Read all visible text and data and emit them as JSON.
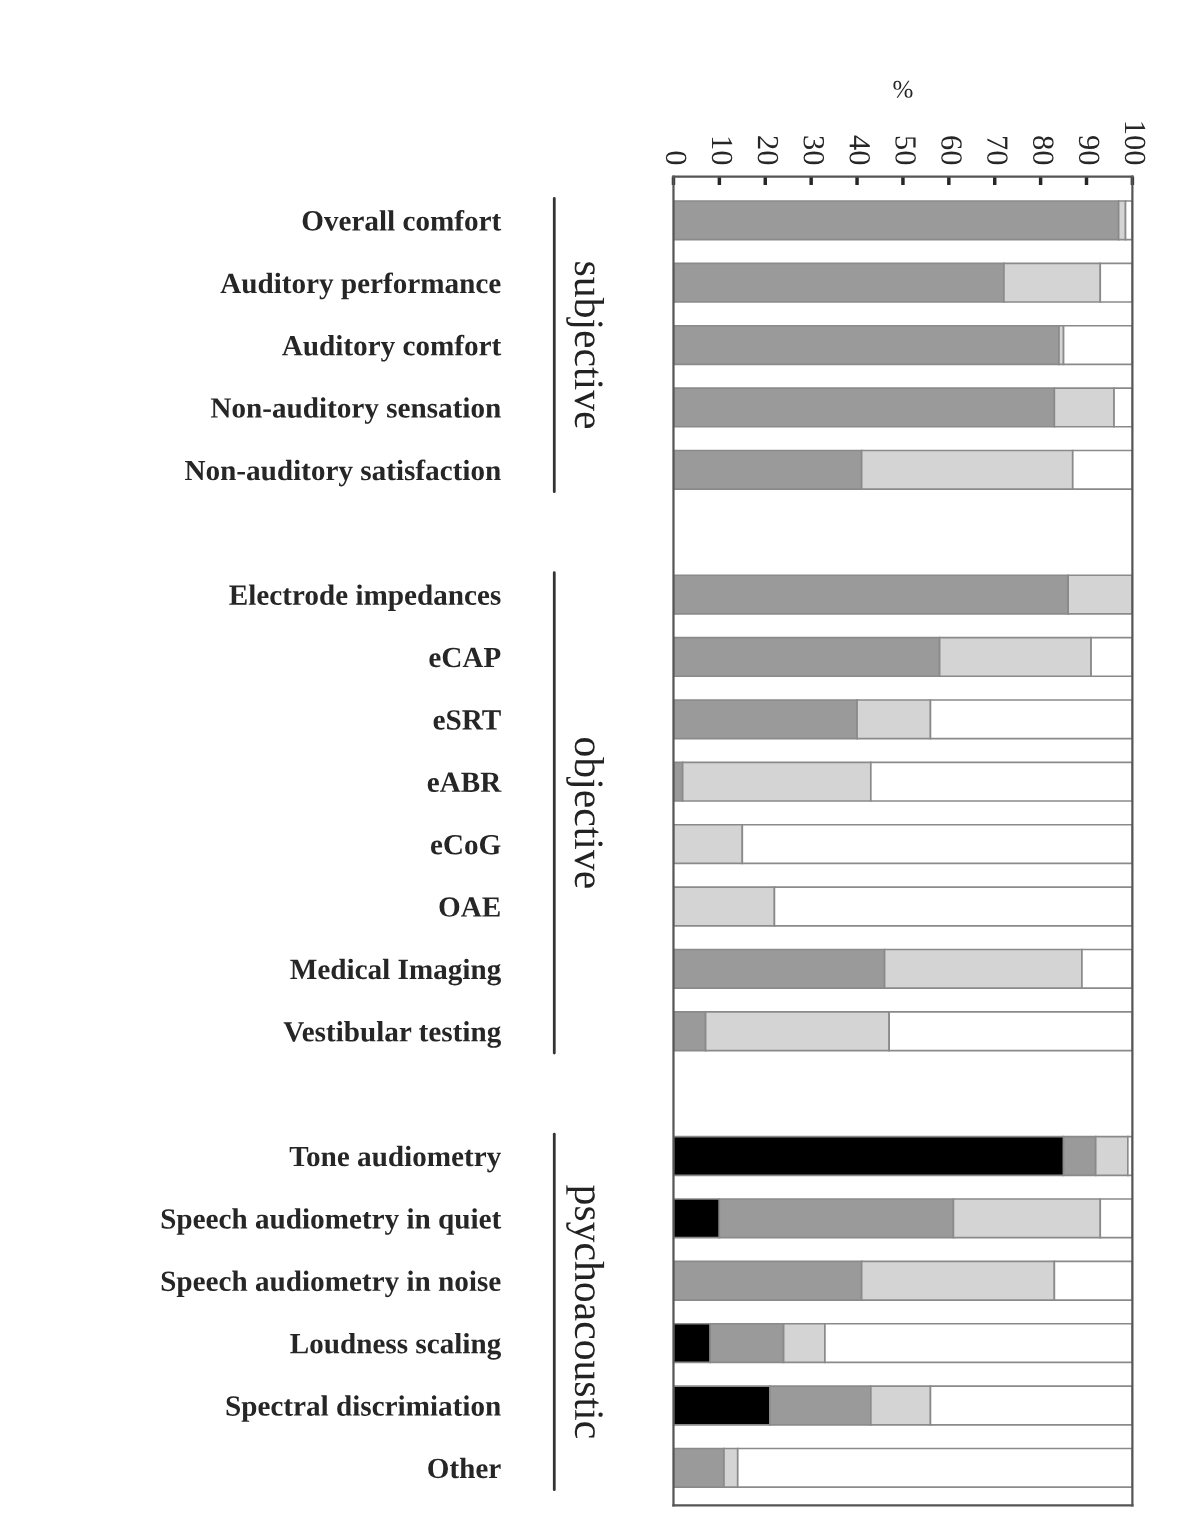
{
  "chart_data": {
    "type": "bar",
    "orientation": "horizontal",
    "stacked": true,
    "xlabel": "%",
    "categories": [
      "Overall comfort",
      "Auditory performance",
      "Auditory comfort",
      "Non-auditory sensation",
      "Non-auditory satisfaction",
      null,
      "Electrode impedances",
      "eCAP",
      "eSRT",
      "eABR",
      "eCoG",
      "OAE",
      "Medical Imaging",
      "Vestibular testing",
      null,
      "Tone audiometry",
      "Speech audiometry in quiet",
      "Speech audiometry in noise",
      "Loudness scaling",
      "Spectral discrimiation",
      "Other"
    ],
    "series": [
      {
        "color": "#000000",
        "values": [
          0,
          0,
          0,
          0,
          0,
          null,
          0,
          0,
          0,
          0,
          0,
          0,
          0,
          0,
          null,
          85,
          10,
          0,
          8,
          21,
          0
        ]
      },
      {
        "color": "#9a9a9a",
        "values": [
          97,
          72,
          84,
          83,
          41,
          null,
          86,
          58,
          40,
          2,
          0,
          0,
          46,
          7,
          null,
          7,
          51,
          41,
          16,
          22,
          11
        ]
      },
      {
        "color": "#d4d4d4",
        "values": [
          1.5,
          21,
          1,
          13,
          46,
          null,
          14,
          33,
          16,
          41,
          15,
          22,
          43,
          40,
          null,
          7,
          32,
          42,
          9,
          13,
          3
        ]
      },
      {
        "color": "#ffffff",
        "values": [
          1.5,
          7,
          15,
          4,
          13,
          null,
          0,
          9,
          44,
          57,
          85,
          78,
          11,
          53,
          null,
          1,
          7,
          17,
          67,
          44,
          86
        ]
      }
    ],
    "xlim": [
      0,
      100
    ],
    "xticks": [
      0,
      10,
      20,
      30,
      40,
      50,
      60,
      70,
      80,
      90,
      100
    ],
    "annotations": [
      "subjective",
      "objective",
      "psychoacoustic"
    ],
    "grid": false,
    "legend": false
  }
}
